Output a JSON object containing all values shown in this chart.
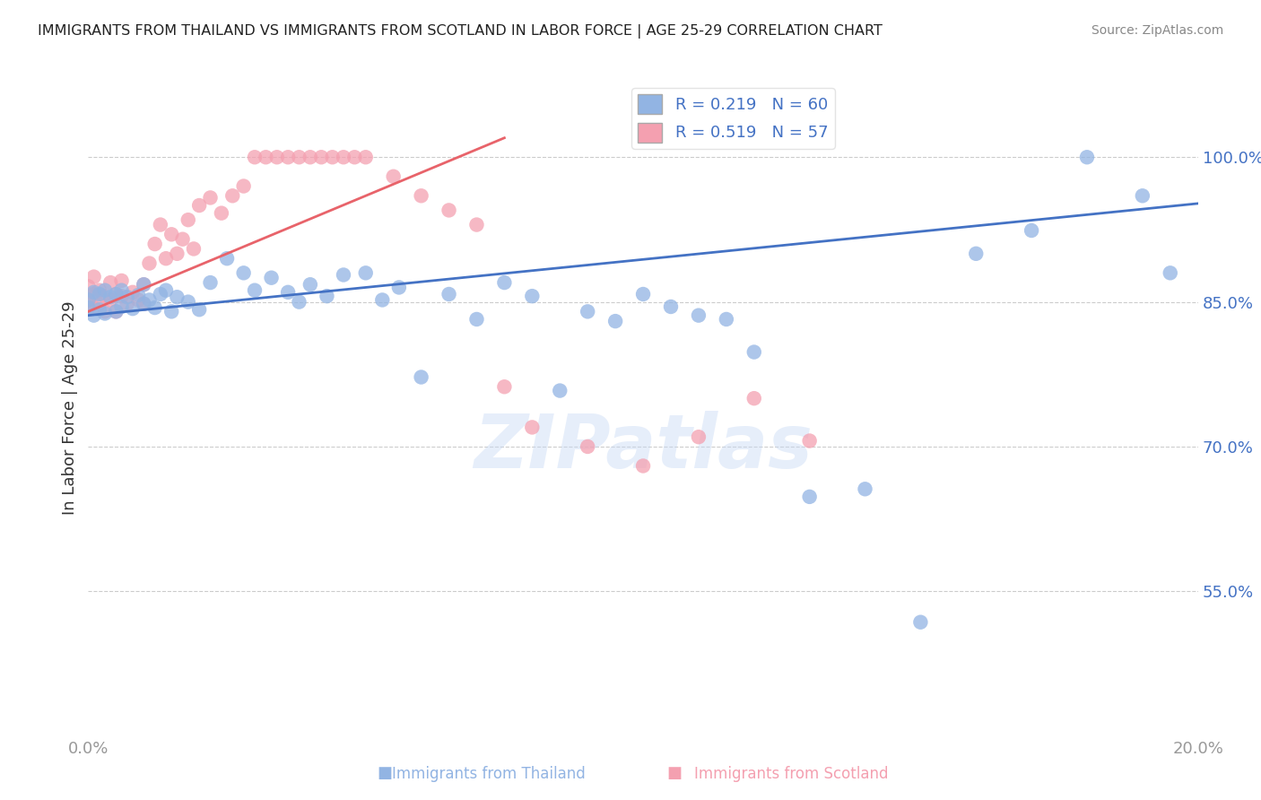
{
  "title": "IMMIGRANTS FROM THAILAND VS IMMIGRANTS FROM SCOTLAND IN LABOR FORCE | AGE 25-29 CORRELATION CHART",
  "source": "Source: ZipAtlas.com",
  "ylabel": "In Labor Force | Age 25-29",
  "x_min": 0.0,
  "x_max": 0.2,
  "y_min": 0.4,
  "y_max": 1.08,
  "y_ticks": [
    0.55,
    0.7,
    0.85,
    1.0
  ],
  "y_tick_labels": [
    "55.0%",
    "70.0%",
    "85.0%",
    "100.0%"
  ],
  "x_tick_labels": [
    "0.0%",
    "20.0%"
  ],
  "thailand_color": "#92b4e3",
  "scotland_color": "#f4a0b0",
  "line_thailand_color": "#4472c4",
  "line_scotland_color": "#e8636a",
  "tick_color_y": "#4472c4",
  "title_color": "#222222",
  "source_color": "#888888",
  "ylabel_color": "#333333",
  "background_color": "#ffffff",
  "grid_color": "#cccccc",
  "watermark": "ZIPatlas",
  "thailand_line_x": [
    0.0,
    0.2
  ],
  "thailand_line_y": [
    0.836,
    0.952
  ],
  "scotland_line_x": [
    0.0,
    0.075
  ],
  "scotland_line_y": [
    0.84,
    1.02
  ],
  "thailand_x": [
    0.0,
    0.0,
    0.001,
    0.001,
    0.002,
    0.002,
    0.003,
    0.003,
    0.004,
    0.005,
    0.005,
    0.006,
    0.006,
    0.007,
    0.008,
    0.009,
    0.01,
    0.01,
    0.011,
    0.012,
    0.013,
    0.014,
    0.015,
    0.016,
    0.018,
    0.02,
    0.022,
    0.025,
    0.028,
    0.03,
    0.033,
    0.036,
    0.038,
    0.04,
    0.043,
    0.046,
    0.05,
    0.053,
    0.056,
    0.06,
    0.065,
    0.07,
    0.075,
    0.08,
    0.085,
    0.09,
    0.095,
    0.1,
    0.105,
    0.11,
    0.115,
    0.12,
    0.13,
    0.14,
    0.15,
    0.16,
    0.17,
    0.18,
    0.19,
    0.195
  ],
  "thailand_y": [
    0.852,
    0.844,
    0.86,
    0.836,
    0.858,
    0.842,
    0.862,
    0.838,
    0.855,
    0.858,
    0.84,
    0.862,
    0.845,
    0.855,
    0.843,
    0.857,
    0.848,
    0.868,
    0.852,
    0.844,
    0.858,
    0.862,
    0.84,
    0.855,
    0.85,
    0.842,
    0.87,
    0.895,
    0.88,
    0.862,
    0.875,
    0.86,
    0.85,
    0.868,
    0.856,
    0.878,
    0.88,
    0.852,
    0.865,
    0.772,
    0.858,
    0.832,
    0.87,
    0.856,
    0.758,
    0.84,
    0.83,
    0.858,
    0.845,
    0.836,
    0.832,
    0.798,
    0.648,
    0.656,
    0.518,
    0.9,
    0.924,
    1.0,
    0.96,
    0.88
  ],
  "scotland_x": [
    0.0,
    0.0,
    0.0,
    0.001,
    0.001,
    0.001,
    0.002,
    0.002,
    0.003,
    0.003,
    0.004,
    0.004,
    0.005,
    0.005,
    0.006,
    0.006,
    0.007,
    0.008,
    0.009,
    0.01,
    0.01,
    0.011,
    0.012,
    0.013,
    0.014,
    0.015,
    0.016,
    0.017,
    0.018,
    0.019,
    0.02,
    0.022,
    0.024,
    0.026,
    0.028,
    0.03,
    0.032,
    0.034,
    0.036,
    0.038,
    0.04,
    0.042,
    0.044,
    0.046,
    0.048,
    0.05,
    0.055,
    0.06,
    0.065,
    0.07,
    0.075,
    0.08,
    0.09,
    0.1,
    0.11,
    0.12,
    0.13
  ],
  "scotland_y": [
    0.852,
    0.844,
    0.866,
    0.858,
    0.844,
    0.876,
    0.862,
    0.848,
    0.856,
    0.84,
    0.87,
    0.852,
    0.858,
    0.84,
    0.872,
    0.856,
    0.848,
    0.86,
    0.852,
    0.868,
    0.848,
    0.89,
    0.91,
    0.93,
    0.895,
    0.92,
    0.9,
    0.915,
    0.935,
    0.905,
    0.95,
    0.958,
    0.942,
    0.96,
    0.97,
    1.0,
    1.0,
    1.0,
    1.0,
    1.0,
    1.0,
    1.0,
    1.0,
    1.0,
    1.0,
    1.0,
    0.98,
    0.96,
    0.945,
    0.93,
    0.762,
    0.72,
    0.7,
    0.68,
    0.71,
    0.75,
    0.706
  ]
}
